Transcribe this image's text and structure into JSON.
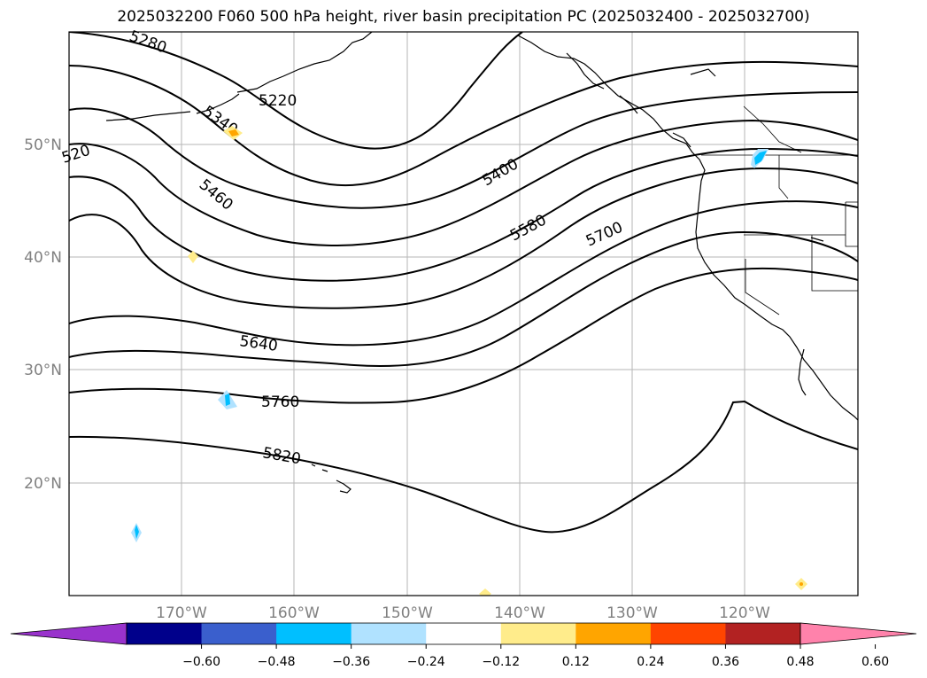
{
  "title": "2025032200 F060 500 hPa height, river basin precipitation PC (2025032400 - 2025032700)",
  "map": {
    "projection": "PlateCarree",
    "extent": {
      "lon_min": -180,
      "lon_max": -110,
      "lat_min": 10,
      "lat_max": 60
    },
    "gridlines": true,
    "lon_labels": [
      "170°W",
      "160°W",
      "150°W",
      "140°W",
      "130°W",
      "120°W"
    ],
    "lat_labels": [
      "50°N",
      "40°N",
      "30°N",
      "20°N"
    ],
    "contour_labels": [
      {
        "text": "5280",
        "color": "#000000"
      },
      {
        "text": "5220",
        "color": "#000000"
      },
      {
        "text": "5340",
        "color": "#000000"
      },
      {
        "text": "520",
        "color": "#000000"
      },
      {
        "text": "5460",
        "color": "#000000"
      },
      {
        "text": "5400",
        "color": "#000000"
      },
      {
        "text": "5580",
        "color": "#000000"
      },
      {
        "text": "5700",
        "color": "#000000"
      },
      {
        "text": "5640",
        "color": "#000000"
      },
      {
        "text": "5760",
        "color": "#000000"
      },
      {
        "text": "5820",
        "color": "#000000"
      }
    ]
  },
  "colorbar": {
    "ticks": [
      "−0.60",
      "−0.48",
      "−0.36",
      "−0.24",
      "−0.12",
      "0.12",
      "0.24",
      "0.36",
      "0.48",
      "0.60"
    ],
    "colors": [
      "#9932cc",
      "#00008b",
      "#3a5fcd",
      "#00bfff",
      "#b0e2ff",
      "#ffffff",
      "#ffec8b",
      "#ffa500",
      "#ff4500",
      "#b22222",
      "#ff82ab"
    ]
  }
}
